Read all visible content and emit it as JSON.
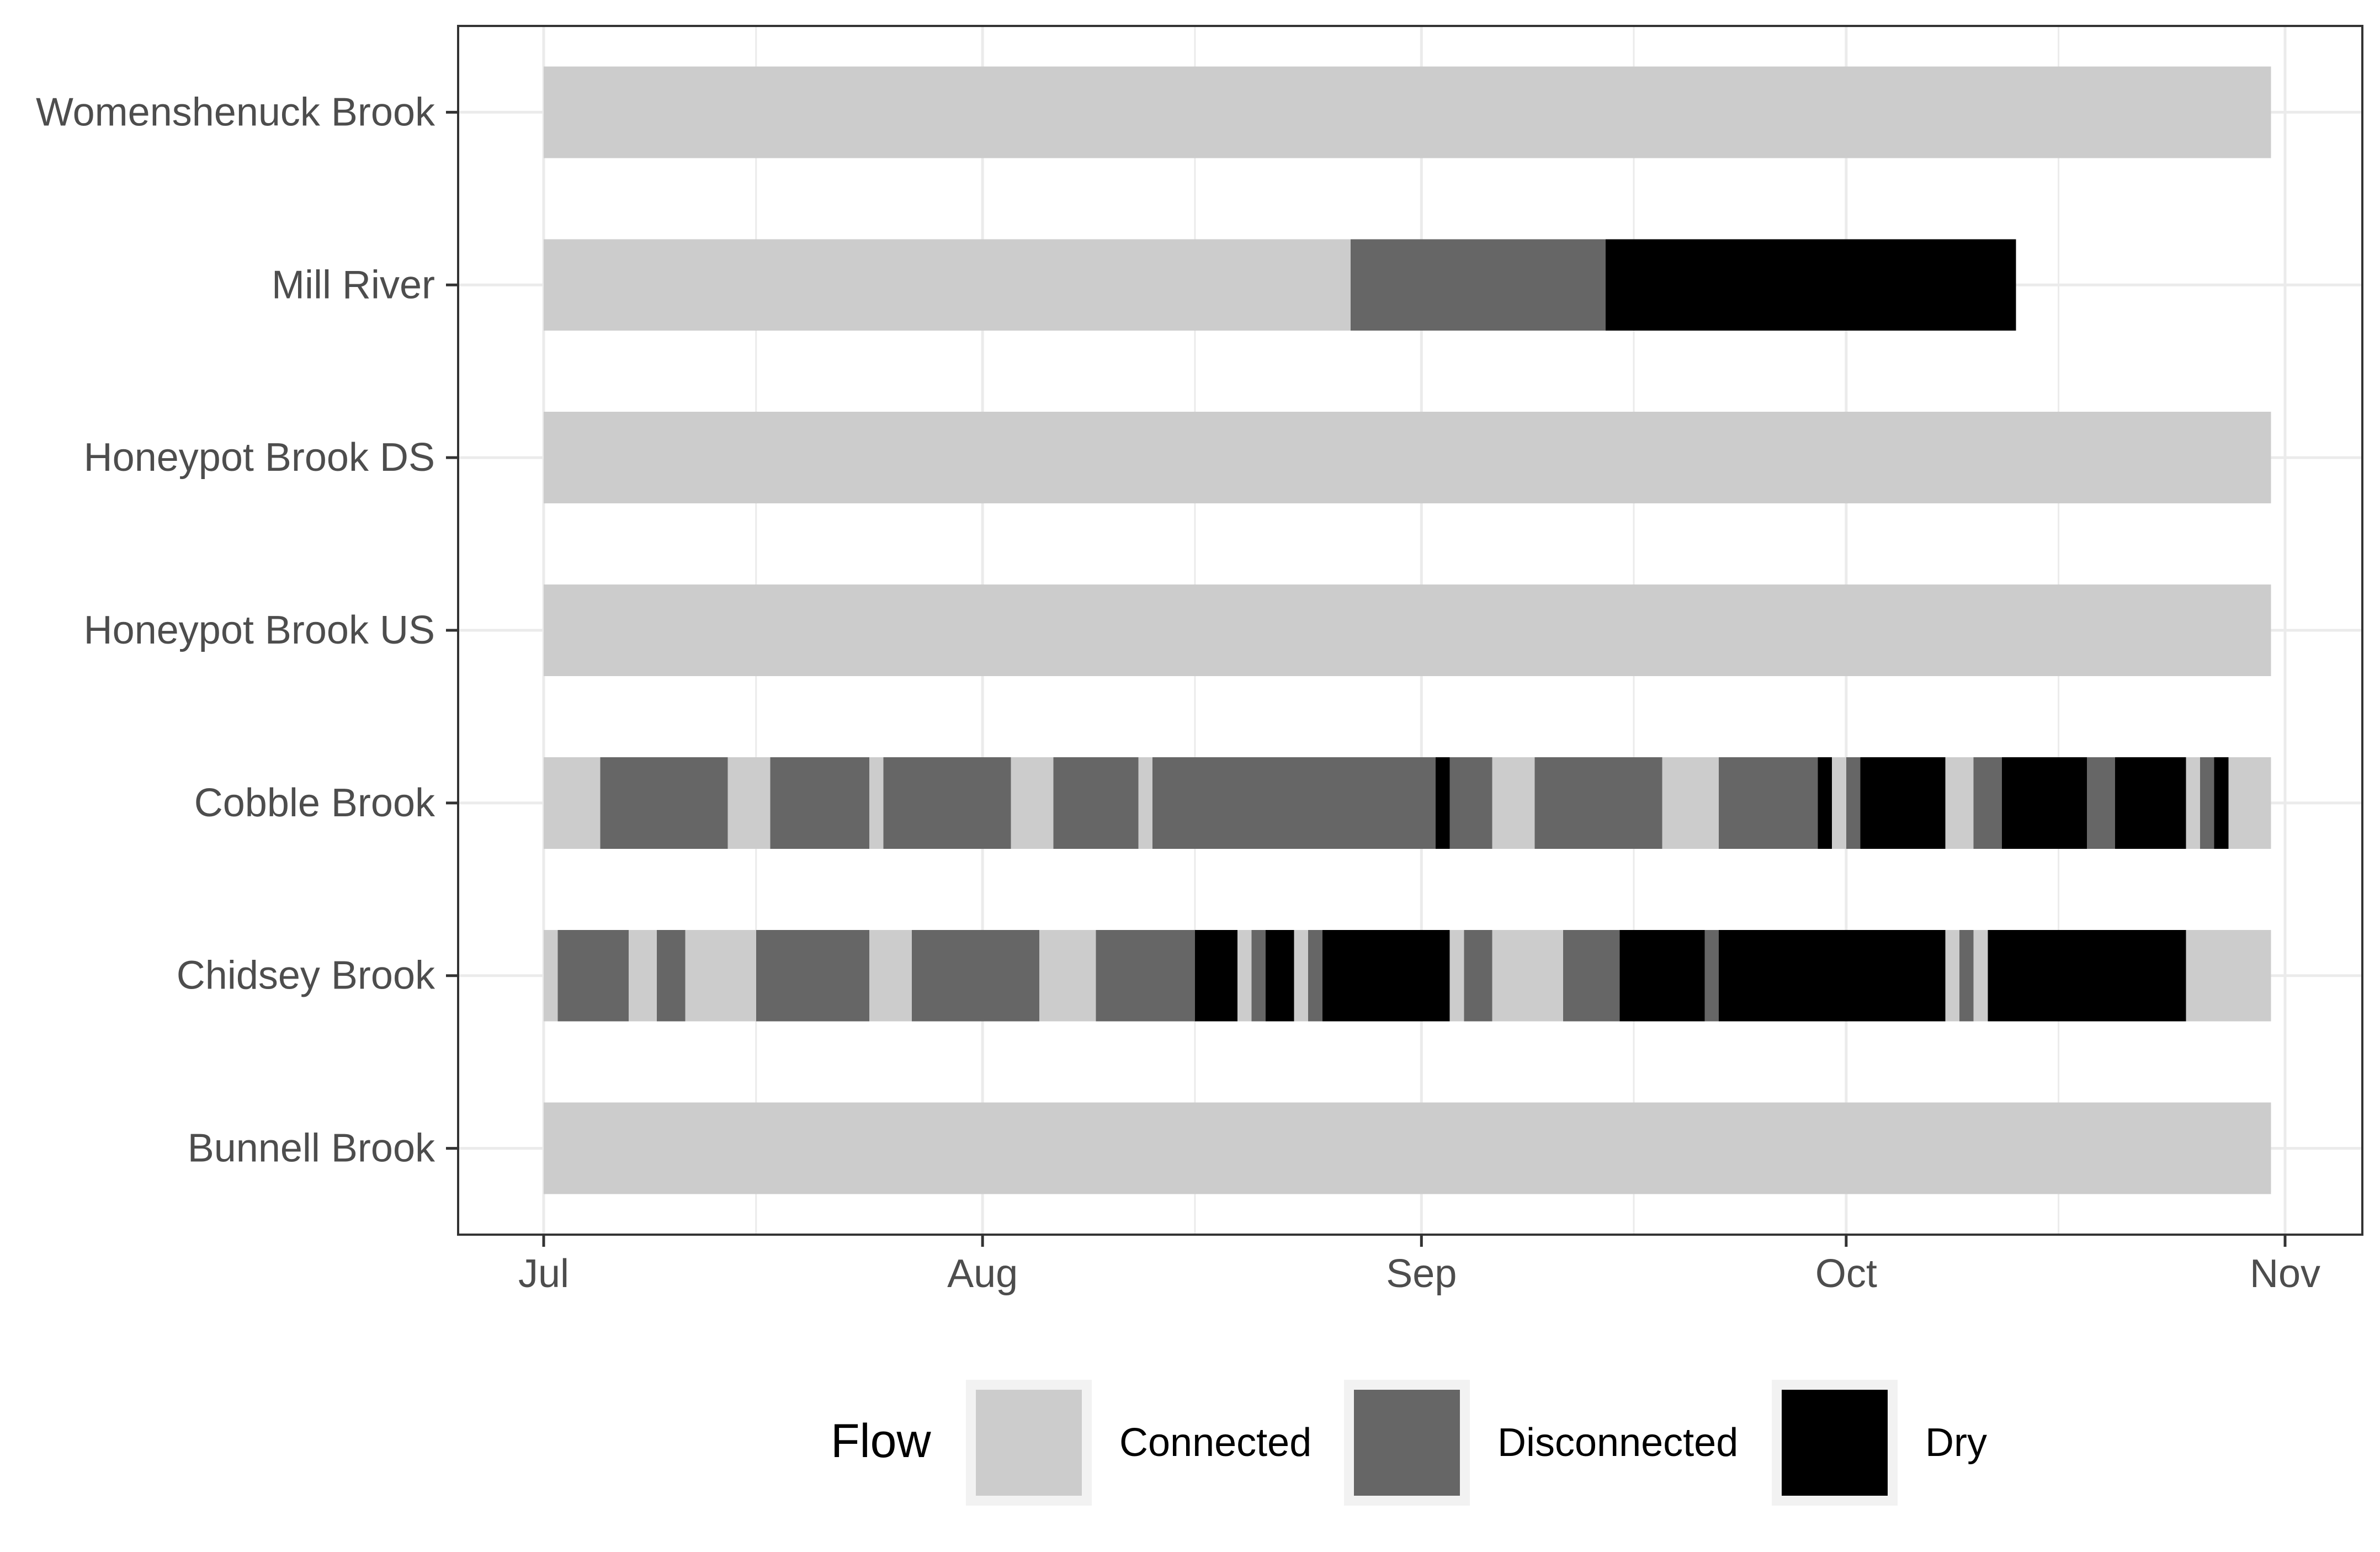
{
  "chart_data": {
    "type": "timeline",
    "title": "",
    "xlabel": "",
    "ylabel": "",
    "x_range": [
      "2019-07-01",
      "2019-11-01"
    ],
    "x_ticks": [
      {
        "date": "2019-07-01",
        "label": "Jul"
      },
      {
        "date": "2019-08-01",
        "label": "Aug"
      },
      {
        "date": "2019-09-01",
        "label": "Sep"
      },
      {
        "date": "2019-10-01",
        "label": "Oct"
      },
      {
        "date": "2019-11-01",
        "label": "Nov"
      }
    ],
    "x_minor_ticks": [
      "2019-07-16",
      "2019-08-16",
      "2019-09-16",
      "2019-10-16"
    ],
    "grid": true,
    "legend": {
      "title": "Flow",
      "position": "bottom",
      "entries": [
        {
          "label": "Connected",
          "color": "#cccccc"
        },
        {
          "label": "Disconnected",
          "color": "#666666"
        },
        {
          "label": "Dry",
          "color": "#000000"
        }
      ]
    },
    "colors": {
      "Connected": "#cccccc",
      "Disconnected": "#666666",
      "Dry": "#000000"
    },
    "series": [
      {
        "name": "Womenshenuck Brook",
        "segments": [
          {
            "start": "2019-07-01",
            "end": "2019-10-31",
            "state": "Connected"
          }
        ]
      },
      {
        "name": "Mill River",
        "segments": [
          {
            "start": "2019-07-01",
            "end": "2019-08-27",
            "state": "Connected"
          },
          {
            "start": "2019-08-27",
            "end": "2019-09-14",
            "state": "Disconnected"
          },
          {
            "start": "2019-09-14",
            "end": "2019-10-13",
            "state": "Dry"
          }
        ]
      },
      {
        "name": "Honeypot Brook DS",
        "segments": [
          {
            "start": "2019-07-01",
            "end": "2019-10-31",
            "state": "Connected"
          }
        ]
      },
      {
        "name": "Honeypot Brook US",
        "segments": [
          {
            "start": "2019-07-01",
            "end": "2019-10-31",
            "state": "Connected"
          }
        ]
      },
      {
        "name": "Cobble Brook",
        "segments": [
          {
            "start": "2019-07-01",
            "end": "2019-07-05",
            "state": "Connected"
          },
          {
            "start": "2019-07-05",
            "end": "2019-07-14",
            "state": "Disconnected"
          },
          {
            "start": "2019-07-14",
            "end": "2019-07-17",
            "state": "Connected"
          },
          {
            "start": "2019-07-17",
            "end": "2019-07-24",
            "state": "Disconnected"
          },
          {
            "start": "2019-07-24",
            "end": "2019-07-25",
            "state": "Connected"
          },
          {
            "start": "2019-07-25",
            "end": "2019-08-03",
            "state": "Disconnected"
          },
          {
            "start": "2019-08-03",
            "end": "2019-08-06",
            "state": "Connected"
          },
          {
            "start": "2019-08-06",
            "end": "2019-08-12",
            "state": "Disconnected"
          },
          {
            "start": "2019-08-12",
            "end": "2019-08-13",
            "state": "Connected"
          },
          {
            "start": "2019-08-13",
            "end": "2019-09-02",
            "state": "Disconnected"
          },
          {
            "start": "2019-09-02",
            "end": "2019-09-03",
            "state": "Dry"
          },
          {
            "start": "2019-09-03",
            "end": "2019-09-06",
            "state": "Disconnected"
          },
          {
            "start": "2019-09-06",
            "end": "2019-09-09",
            "state": "Connected"
          },
          {
            "start": "2019-09-09",
            "end": "2019-09-18",
            "state": "Disconnected"
          },
          {
            "start": "2019-09-18",
            "end": "2019-09-22",
            "state": "Connected"
          },
          {
            "start": "2019-09-22",
            "end": "2019-09-29",
            "state": "Disconnected"
          },
          {
            "start": "2019-09-29",
            "end": "2019-09-30",
            "state": "Dry"
          },
          {
            "start": "2019-09-30",
            "end": "2019-10-01",
            "state": "Connected"
          },
          {
            "start": "2019-10-01",
            "end": "2019-10-02",
            "state": "Disconnected"
          },
          {
            "start": "2019-10-02",
            "end": "2019-10-08",
            "state": "Dry"
          },
          {
            "start": "2019-10-08",
            "end": "2019-10-10",
            "state": "Connected"
          },
          {
            "start": "2019-10-10",
            "end": "2019-10-12",
            "state": "Disconnected"
          },
          {
            "start": "2019-10-12",
            "end": "2019-10-18",
            "state": "Dry"
          },
          {
            "start": "2019-10-18",
            "end": "2019-10-20",
            "state": "Disconnected"
          },
          {
            "start": "2019-10-20",
            "end": "2019-10-25",
            "state": "Dry"
          },
          {
            "start": "2019-10-25",
            "end": "2019-10-26",
            "state": "Connected"
          },
          {
            "start": "2019-10-26",
            "end": "2019-10-27",
            "state": "Disconnected"
          },
          {
            "start": "2019-10-27",
            "end": "2019-10-28",
            "state": "Dry"
          },
          {
            "start": "2019-10-28",
            "end": "2019-10-31",
            "state": "Connected"
          }
        ]
      },
      {
        "name": "Chidsey Brook",
        "segments": [
          {
            "start": "2019-07-01",
            "end": "2019-07-02",
            "state": "Connected"
          },
          {
            "start": "2019-07-02",
            "end": "2019-07-07",
            "state": "Disconnected"
          },
          {
            "start": "2019-07-07",
            "end": "2019-07-09",
            "state": "Connected"
          },
          {
            "start": "2019-07-09",
            "end": "2019-07-11",
            "state": "Disconnected"
          },
          {
            "start": "2019-07-11",
            "end": "2019-07-16",
            "state": "Connected"
          },
          {
            "start": "2019-07-16",
            "end": "2019-07-24",
            "state": "Disconnected"
          },
          {
            "start": "2019-07-24",
            "end": "2019-07-27",
            "state": "Connected"
          },
          {
            "start": "2019-07-27",
            "end": "2019-08-05",
            "state": "Disconnected"
          },
          {
            "start": "2019-08-05",
            "end": "2019-08-09",
            "state": "Connected"
          },
          {
            "start": "2019-08-09",
            "end": "2019-08-16",
            "state": "Disconnected"
          },
          {
            "start": "2019-08-16",
            "end": "2019-08-19",
            "state": "Dry"
          },
          {
            "start": "2019-08-19",
            "end": "2019-08-20",
            "state": "Connected"
          },
          {
            "start": "2019-08-20",
            "end": "2019-08-21",
            "state": "Disconnected"
          },
          {
            "start": "2019-08-21",
            "end": "2019-08-23",
            "state": "Dry"
          },
          {
            "start": "2019-08-23",
            "end": "2019-08-24",
            "state": "Connected"
          },
          {
            "start": "2019-08-24",
            "end": "2019-08-25",
            "state": "Disconnected"
          },
          {
            "start": "2019-08-25",
            "end": "2019-09-03",
            "state": "Dry"
          },
          {
            "start": "2019-09-03",
            "end": "2019-09-04",
            "state": "Connected"
          },
          {
            "start": "2019-09-04",
            "end": "2019-09-06",
            "state": "Disconnected"
          },
          {
            "start": "2019-09-06",
            "end": "2019-09-11",
            "state": "Connected"
          },
          {
            "start": "2019-09-11",
            "end": "2019-09-15",
            "state": "Disconnected"
          },
          {
            "start": "2019-09-15",
            "end": "2019-09-21",
            "state": "Dry"
          },
          {
            "start": "2019-09-21",
            "end": "2019-09-22",
            "state": "Disconnected"
          },
          {
            "start": "2019-09-22",
            "end": "2019-10-08",
            "state": "Dry"
          },
          {
            "start": "2019-10-08",
            "end": "2019-10-09",
            "state": "Connected"
          },
          {
            "start": "2019-10-09",
            "end": "2019-10-10",
            "state": "Disconnected"
          },
          {
            "start": "2019-10-10",
            "end": "2019-10-11",
            "state": "Connected"
          },
          {
            "start": "2019-10-11",
            "end": "2019-10-25",
            "state": "Dry"
          },
          {
            "start": "2019-10-25",
            "end": "2019-10-31",
            "state": "Connected"
          }
        ]
      },
      {
        "name": "Bunnell Brook",
        "segments": [
          {
            "start": "2019-07-01",
            "end": "2019-10-31",
            "state": "Connected"
          }
        ]
      }
    ]
  }
}
